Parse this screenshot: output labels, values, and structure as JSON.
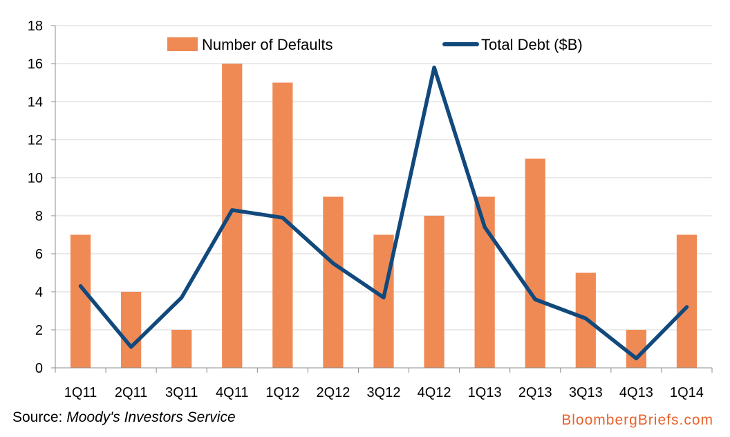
{
  "chart_data": {
    "type": "bar",
    "categories": [
      "1Q11",
      "2Q11",
      "3Q11",
      "4Q11",
      "1Q12",
      "2Q12",
      "3Q12",
      "4Q12",
      "1Q13",
      "2Q13",
      "3Q13",
      "4Q13",
      "1Q14"
    ],
    "series": [
      {
        "name": "Number of Defaults",
        "type": "bar",
        "color": "#f08a55",
        "values": [
          7,
          4,
          2,
          16,
          15,
          9,
          7,
          8,
          9,
          11,
          5,
          2,
          7
        ]
      },
      {
        "name": "Total Debt ($B)",
        "type": "line",
        "color": "#11497c",
        "values": [
          4.3,
          1.1,
          3.7,
          8.3,
          7.9,
          5.5,
          3.7,
          15.8,
          7.4,
          3.6,
          2.6,
          0.5,
          3.2
        ]
      }
    ],
    "yticks": [
      "0",
      "2",
      "4",
      "6",
      "8",
      "10",
      "12",
      "14",
      "16",
      "18"
    ],
    "ylim": [
      0,
      18
    ],
    "grid": true,
    "legend_position": "top"
  },
  "footer": {
    "source_label": "Source:",
    "source_name": "Moody's Investors Service",
    "brand": "BloombergBriefs.com"
  }
}
